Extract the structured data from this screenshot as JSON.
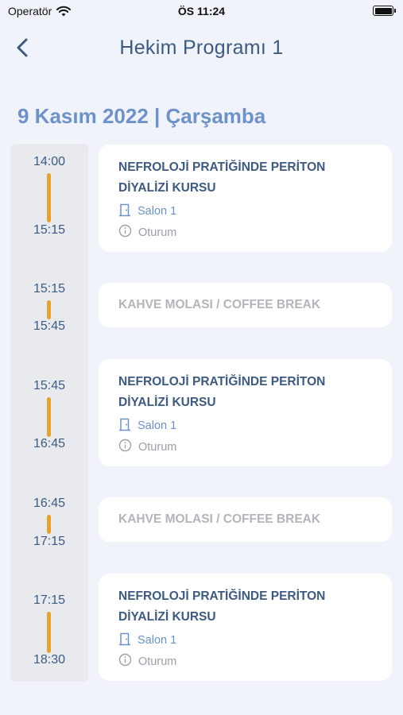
{
  "status_bar": {
    "carrier": "Operatör",
    "time": "ÖS 11:24"
  },
  "nav": {
    "title": "Hekim Programı 1",
    "back_icon": "chevron-left-icon"
  },
  "date_heading": "9 Kasım 2022 | Çarşamba",
  "colors": {
    "accent": "#6d92c9",
    "title": "#3d5b82",
    "time_bar": "#e6a32b",
    "break_text": "#b3b5ba"
  },
  "sessions": [
    {
      "start": "14:00",
      "end": "15:15",
      "type": "session",
      "title": "NEFROLOJİ PRATİĞİNDE PERİTON DİYALİZİ KURSU",
      "room": "Salon 1",
      "kind": "Oturum"
    },
    {
      "start": "15:15",
      "end": "15:45",
      "type": "break",
      "title": "KAHVE MOLASI / COFFEE BREAK"
    },
    {
      "start": "15:45",
      "end": "16:45",
      "type": "session",
      "title": "NEFROLOJİ PRATİĞİNDE PERİTON DİYALİZİ KURSU",
      "room": "Salon 1",
      "kind": "Oturum"
    },
    {
      "start": "16:45",
      "end": "17:15",
      "type": "break",
      "title": "KAHVE MOLASI / COFFEE BREAK"
    },
    {
      "start": "17:15",
      "end": "18:30",
      "type": "session",
      "title": "NEFROLOJİ PRATİĞİNDE PERİTON DİYALİZİ KURSU",
      "room": "Salon 1",
      "kind": "Oturum"
    }
  ]
}
